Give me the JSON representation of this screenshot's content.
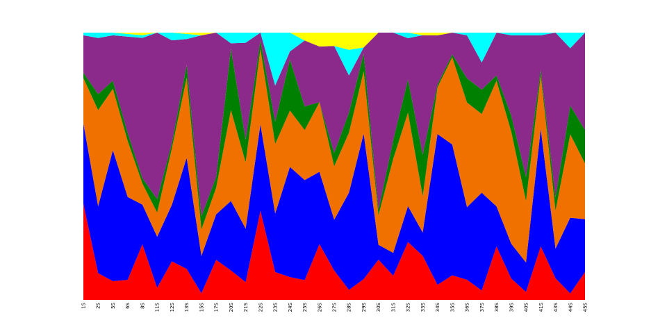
{
  "chart_data": {
    "type": "area",
    "stacked": true,
    "normalized": true,
    "categories": [
      "1S",
      "2S",
      "5S",
      "6S",
      "8S",
      "11S",
      "12S",
      "13S",
      "15S",
      "17S",
      "20S",
      "21S",
      "22S",
      "23S",
      "24S",
      "25S",
      "26S",
      "27S",
      "28S",
      "29S",
      "30S",
      "31S",
      "32S",
      "33S",
      "34S",
      "35S",
      "36S",
      "37S",
      "38S",
      "39S",
      "40S",
      "41S",
      "43S",
      "44S",
      "45S"
    ],
    "ylim": [
      0,
      1
    ],
    "grid": false,
    "legend": "none",
    "series": [
      {
        "color": "#ff0000",
        "values": [
          0.36,
          0.1,
          0.07,
          0.075,
          0.21,
          0.045,
          0.15,
          0.12,
          0.025,
          0.15,
          0.11,
          0.07,
          0.33,
          0.1,
          0.085,
          0.075,
          0.2,
          0.11,
          0.035,
          0.07,
          0.15,
          0.09,
          0.21,
          0.17,
          0.055,
          0.09,
          0.075,
          0.035,
          0.2,
          0.08,
          0.03,
          0.2,
          0.08,
          0.025,
          0.1
        ]
      },
      {
        "color": "#0000ff",
        "values": [
          0.3,
          0.25,
          0.49,
          0.31,
          0.15,
          0.19,
          0.22,
          0.43,
          0.14,
          0.17,
          0.26,
          0.21,
          0.32,
          0.21,
          0.41,
          0.38,
          0.26,
          0.19,
          0.34,
          0.49,
          0.055,
          0.085,
          0.13,
          0.09,
          0.55,
          0.48,
          0.27,
          0.36,
          0.15,
          0.13,
          0.11,
          0.44,
          0.11,
          0.29,
          0.19
        ]
      },
      {
        "color": "#f07000",
        "values": [
          0.17,
          0.36,
          0.23,
          0.21,
          0.08,
          0.09,
          0.22,
          0.31,
          0.1,
          0.1,
          0.34,
          0.26,
          0.28,
          0.25,
          0.21,
          0.19,
          0.25,
          0.2,
          0.21,
          0.21,
          0.11,
          0.35,
          0.34,
          0.14,
          0.17,
          0.32,
          0.39,
          0.29,
          0.47,
          0.42,
          0.23,
          0.2,
          0.14,
          0.32,
          0.2
        ]
      },
      {
        "color": "#008000",
        "values": [
          0.02,
          0.06,
          0.03,
          0.03,
          0.02,
          0.05,
          0.02,
          0.05,
          0.05,
          0.04,
          0.23,
          0.09,
          0.03,
          0.08,
          0.19,
          0.09,
          0.0,
          0.05,
          0.07,
          0.06,
          0.02,
          0.07,
          0.12,
          0.16,
          0.01,
          0.01,
          0.09,
          0.09,
          0.02,
          0.06,
          0.09,
          0.02,
          0.05,
          0.11,
          0.12
        ]
      },
      {
        "color": "#8b2a8b",
        "values": [
          0.14,
          0.21,
          0.17,
          0.36,
          0.53,
          0.62,
          0.4,
          0.1,
          0.68,
          0.54,
          0.02,
          0.38,
          0.03,
          0.13,
          0.03,
          0.25,
          0.2,
          0.4,
          0.13,
          0.02,
          0.66,
          0.4,
          0.15,
          0.46,
          0.18,
          0.08,
          0.16,
          0.1,
          0.16,
          0.3,
          0.53,
          0.13,
          0.61,
          0.22,
          0.35
        ]
      },
      {
        "color": "#00ffff",
        "values": [
          0.01,
          0.02,
          0.01,
          0.01,
          0.01,
          0.0,
          0.03,
          0.02,
          0.0,
          0.0,
          0.04,
          0.04,
          0.0,
          0.19,
          0.07,
          0.0,
          0.0,
          0.0,
          0.09,
          0.0,
          0.0,
          0.0,
          0.02,
          0.0,
          0.0,
          0.0,
          0.01,
          0.11,
          0.0,
          0.01,
          0.01,
          0.01,
          0.0,
          0.06,
          0.0
        ]
      },
      {
        "color": "#ffff00",
        "values": [
          0.0,
          0.0,
          0.0,
          0.005,
          0.01,
          0.0,
          0.0,
          0.005,
          0.01,
          0.0,
          0.0,
          0.0,
          0.0,
          0.0,
          0.0,
          0.03,
          0.05,
          0.05,
          0.06,
          0.05,
          0.0,
          0.0,
          0.0,
          0.01,
          0.01,
          0.0,
          0.0,
          0.0,
          0.0,
          0.0,
          0.0,
          0.0,
          0.0,
          0.0,
          0.0
        ]
      }
    ]
  }
}
